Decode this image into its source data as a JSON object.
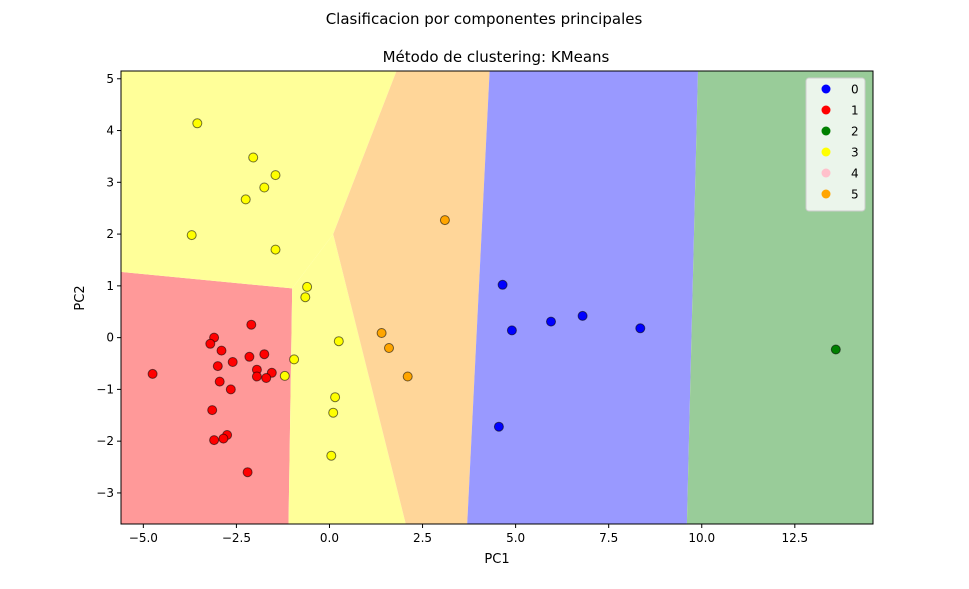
{
  "chart_data": {
    "type": "scatter",
    "suptitle": "Clasificacion por componentes principales",
    "title": "Método de clustering: KMeans",
    "xlabel": "PC1",
    "ylabel": "PC2",
    "xlim": [
      -5.6,
      14.6
    ],
    "ylim": [
      -3.6,
      5.15
    ],
    "xticks": [
      -5.0,
      -2.5,
      0.0,
      2.5,
      5.0,
      7.5,
      10.0,
      12.5
    ],
    "xtick_labels": [
      "−5.0",
      "−2.5",
      "0.0",
      "2.5",
      "5.0",
      "7.5",
      "10.0",
      "12.5"
    ],
    "yticks": [
      -3,
      -2,
      -1,
      0,
      1,
      2,
      3,
      4,
      5
    ],
    "ytick_labels": [
      "−3",
      "−2",
      "−1",
      "0",
      "1",
      "2",
      "3",
      "4",
      "5"
    ],
    "legend_position": "top-right",
    "grid": false,
    "cluster_colors": {
      "0": "#0000ff",
      "1": "#ff0000",
      "2": "#008000",
      "3": "#ffff00",
      "4": "#ffc0cb",
      "5": "#ffa500"
    },
    "region_colors": {
      "0": "#9999ff",
      "1": "#ff9999",
      "2": "#99cc99",
      "3": "#ffff99",
      "5": "#ffd699"
    },
    "regions": [
      {
        "cluster": "1",
        "polygon": [
          [
            -5.6,
            1.27
          ],
          [
            -1.0,
            0.95
          ],
          [
            -1.1,
            -3.6
          ],
          [
            -5.6,
            -3.6
          ]
        ]
      },
      {
        "cluster": "3",
        "polygon": [
          [
            -5.6,
            5.15
          ],
          [
            1.8,
            5.15
          ],
          [
            0.1,
            2.0
          ],
          [
            -1.0,
            0.95
          ],
          [
            -5.6,
            1.27
          ]
        ]
      },
      {
        "cluster": "3",
        "polygon": [
          [
            -1.0,
            0.95
          ],
          [
            0.1,
            2.0
          ],
          [
            2.05,
            -3.6
          ],
          [
            -1.1,
            -3.6
          ]
        ]
      },
      {
        "cluster": "5",
        "polygon": [
          [
            1.8,
            5.15
          ],
          [
            4.3,
            5.15
          ],
          [
            3.7,
            -3.6
          ],
          [
            2.05,
            -3.6
          ],
          [
            0.1,
            2.0
          ]
        ]
      },
      {
        "cluster": "0",
        "polygon": [
          [
            4.3,
            5.15
          ],
          [
            9.9,
            5.15
          ],
          [
            9.6,
            -3.6
          ],
          [
            3.7,
            -3.6
          ]
        ]
      },
      {
        "cluster": "2",
        "polygon": [
          [
            9.9,
            5.15
          ],
          [
            14.6,
            5.15
          ],
          [
            14.6,
            -3.6
          ],
          [
            9.6,
            -3.6
          ]
        ]
      }
    ],
    "series": [
      {
        "name": "0",
        "color": "#0000ff",
        "points": [
          [
            4.65,
            1.02
          ],
          [
            4.9,
            0.14
          ],
          [
            5.95,
            0.31
          ],
          [
            6.8,
            0.42
          ],
          [
            8.35,
            0.18
          ],
          [
            4.55,
            -1.72
          ]
        ]
      },
      {
        "name": "1",
        "color": "#ff0000",
        "points": [
          [
            -4.75,
            -0.7
          ],
          [
            -3.1,
            0.0
          ],
          [
            -3.2,
            -0.12
          ],
          [
            -2.9,
            -0.25
          ],
          [
            -3.0,
            -0.55
          ],
          [
            -2.6,
            -0.47
          ],
          [
            -2.1,
            0.25
          ],
          [
            -2.15,
            -0.37
          ],
          [
            -1.75,
            -0.32
          ],
          [
            -1.95,
            -0.62
          ],
          [
            -1.95,
            -0.75
          ],
          [
            -1.55,
            -0.68
          ],
          [
            -1.7,
            -0.78
          ],
          [
            -2.95,
            -0.85
          ],
          [
            -2.65,
            -1.0
          ],
          [
            -3.15,
            -1.4
          ],
          [
            -2.75,
            -1.88
          ],
          [
            -2.85,
            -1.95
          ],
          [
            -3.1,
            -1.98
          ],
          [
            -2.2,
            -2.6
          ]
        ]
      },
      {
        "name": "2",
        "color": "#008000",
        "points": [
          [
            13.6,
            -0.23
          ]
        ]
      },
      {
        "name": "3",
        "color": "#ffff00",
        "points": [
          [
            -3.55,
            4.14
          ],
          [
            -2.05,
            3.48
          ],
          [
            -1.45,
            3.14
          ],
          [
            -1.75,
            2.9
          ],
          [
            -2.25,
            2.67
          ],
          [
            -3.7,
            1.98
          ],
          [
            -1.45,
            1.7
          ],
          [
            -0.6,
            0.98
          ],
          [
            -0.65,
            0.78
          ],
          [
            -0.95,
            -0.42
          ],
          [
            -1.2,
            -0.74
          ],
          [
            0.25,
            -0.07
          ],
          [
            0.15,
            -1.15
          ],
          [
            0.1,
            -1.45
          ],
          [
            0.05,
            -2.28
          ]
        ]
      },
      {
        "name": "4",
        "color": "#ffc0cb",
        "points": []
      },
      {
        "name": "5",
        "color": "#ffa500",
        "points": [
          [
            3.1,
            2.27
          ],
          [
            1.4,
            0.09
          ],
          [
            1.6,
            -0.2
          ],
          [
            2.1,
            -0.75
          ]
        ]
      }
    ]
  }
}
